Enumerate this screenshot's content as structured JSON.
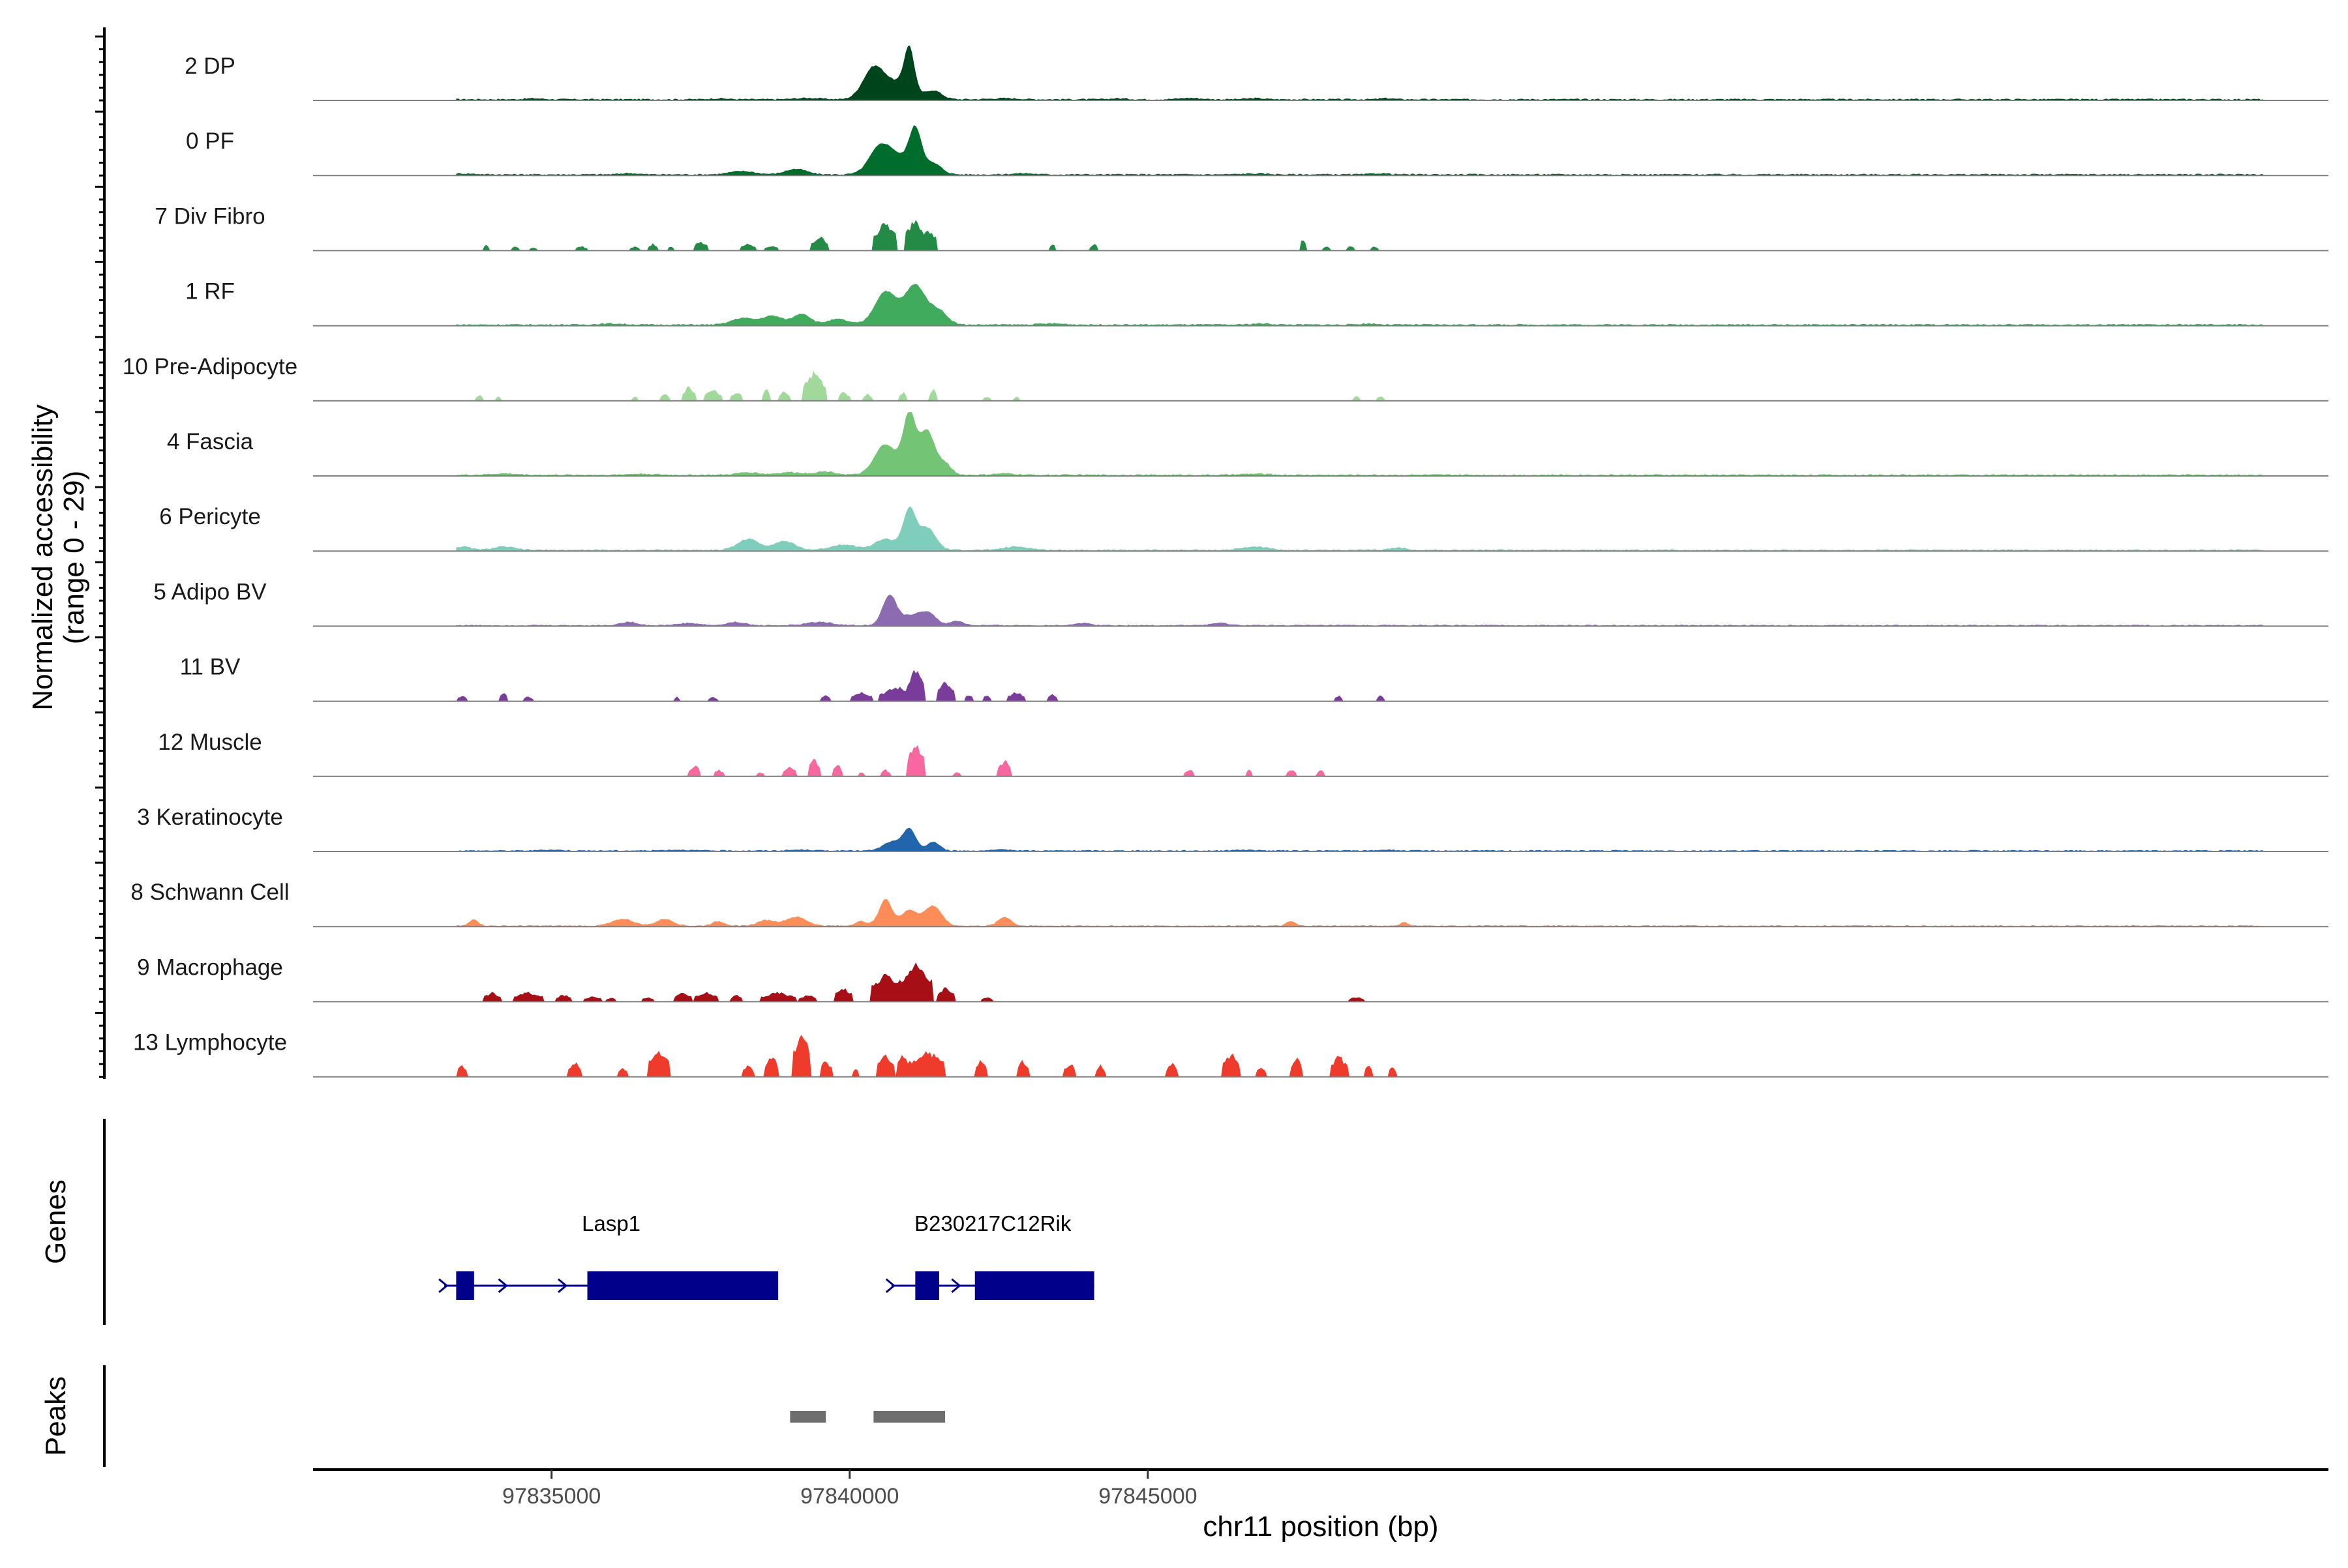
{
  "chart_data": {
    "type": "area",
    "title": "",
    "ylabel": "Normalized accessibility\n(range 0 - 29)",
    "ylabel_lines": [
      "Normalized accessibility",
      "(range 0 - 29)"
    ],
    "ylim": [
      0,
      29
    ],
    "xlabel": "chr11 position (bp)",
    "xlim": [
      97831000,
      97864800
    ],
    "xticks": [
      {
        "value": 97835000,
        "label": "97835000"
      },
      {
        "value": 97840000,
        "label": "97840000"
      },
      {
        "value": 97845000,
        "label": "97845000"
      }
    ],
    "series": [
      {
        "name": "2 DP",
        "color": "#00441b",
        "style": "smooth",
        "base": 0.6,
        "peaks": [
          [
            97833000,
            0.5,
            150
          ],
          [
            97834700,
            0.4,
            200
          ],
          [
            97837800,
            0.4,
            200
          ],
          [
            97839300,
            0.6,
            300
          ],
          [
            97840400,
            14,
            250
          ],
          [
            97840800,
            7,
            300
          ],
          [
            97841000,
            20,
            120
          ],
          [
            97841400,
            4,
            200
          ],
          [
            97842600,
            0.5,
            300
          ],
          [
            97844500,
            0.4,
            200
          ],
          [
            97845700,
            0.6,
            250
          ],
          [
            97846800,
            0.5,
            200
          ],
          [
            97849000,
            0.5,
            150
          ]
        ]
      },
      {
        "name": "0 PF",
        "color": "#006d2c",
        "style": "smooth",
        "base": 0.6,
        "peaks": [
          [
            97833500,
            0.4,
            300
          ],
          [
            97836300,
            0.6,
            200
          ],
          [
            97838200,
            1.5,
            300
          ],
          [
            97839100,
            2.5,
            250
          ],
          [
            97840500,
            12,
            250
          ],
          [
            97840800,
            7,
            250
          ],
          [
            97841100,
            20,
            150
          ],
          [
            97841400,
            5,
            200
          ],
          [
            97842900,
            0.5,
            250
          ],
          [
            97846800,
            0.4,
            300
          ],
          [
            97848900,
            0.5,
            200
          ]
        ]
      },
      {
        "name": "7 Div Fibro",
        "color": "#238b45",
        "style": "blocky",
        "base": 0,
        "peaks": [
          [
            97833900,
            2.5,
            60
          ],
          [
            97834400,
            2,
            70
          ],
          [
            97834700,
            1.5,
            60
          ],
          [
            97835500,
            2,
            90
          ],
          [
            97836400,
            2,
            80
          ],
          [
            97836700,
            3,
            80
          ],
          [
            97837000,
            2,
            60
          ],
          [
            97837500,
            4,
            120
          ],
          [
            97838300,
            3,
            120
          ],
          [
            97838700,
            2,
            120
          ],
          [
            97839500,
            6,
            150
          ],
          [
            97840600,
            12,
            200
          ],
          [
            97841100,
            14,
            170
          ],
          [
            97841300,
            10,
            150
          ],
          [
            97843400,
            3,
            60
          ],
          [
            97844100,
            3,
            70
          ],
          [
            97847600,
            5,
            60
          ],
          [
            97848000,
            2,
            60
          ],
          [
            97848400,
            2,
            70
          ],
          [
            97848800,
            2,
            60
          ]
        ]
      },
      {
        "name": "1 RF",
        "color": "#41ab5d",
        "style": "smooth",
        "base": 0.6,
        "peaks": [
          [
            97836000,
            0.5,
            300
          ],
          [
            97838200,
            3,
            250
          ],
          [
            97838700,
            4,
            250
          ],
          [
            97839200,
            5,
            200
          ],
          [
            97839800,
            2.5,
            250
          ],
          [
            97840600,
            15,
            250
          ],
          [
            97841100,
            18,
            250
          ],
          [
            97841500,
            6,
            200
          ],
          [
            97843400,
            0.5,
            300
          ],
          [
            97846900,
            0.5,
            250
          ],
          [
            97848700,
            0.5,
            200
          ]
        ]
      },
      {
        "name": "10 Pre-Adipocyte",
        "color": "#a1d99b",
        "style": "blocky",
        "base": 0,
        "peaks": [
          [
            97833800,
            2.5,
            70
          ],
          [
            97834100,
            1.8,
            60
          ],
          [
            97836400,
            2,
            60
          ],
          [
            97836900,
            3,
            80
          ],
          [
            97837300,
            6,
            120
          ],
          [
            97837700,
            5,
            150
          ],
          [
            97838100,
            4,
            100
          ],
          [
            97838600,
            5,
            80
          ],
          [
            97838900,
            4,
            100
          ],
          [
            97839400,
            12,
            200
          ],
          [
            97839900,
            4,
            100
          ],
          [
            97840300,
            3,
            80
          ],
          [
            97840900,
            4,
            60
          ],
          [
            97841400,
            5,
            70
          ],
          [
            97842300,
            2,
            60
          ],
          [
            97842800,
            2,
            60
          ],
          [
            97848500,
            2,
            60
          ],
          [
            97848900,
            2,
            80
          ]
        ]
      },
      {
        "name": "4 Fascia",
        "color": "#74c476",
        "style": "smooth",
        "base": 0.6,
        "peaks": [
          [
            97834200,
            0.6,
            300
          ],
          [
            97836500,
            0.5,
            300
          ],
          [
            97838300,
            1.2,
            250
          ],
          [
            97839000,
            1.2,
            300
          ],
          [
            97839600,
            1.5,
            250
          ],
          [
            97840600,
            14,
            250
          ],
          [
            97841000,
            27,
            150
          ],
          [
            97841300,
            20,
            180
          ],
          [
            97841600,
            5,
            150
          ],
          [
            97842600,
            0.6,
            250
          ],
          [
            97846800,
            0.5,
            300
          ]
        ]
      },
      {
        "name": "6 Pericyte",
        "color": "#7fcdbb",
        "style": "smooth",
        "base": 0.6,
        "peaks": [
          [
            97833500,
            1.5,
            200
          ],
          [
            97834200,
            1.5,
            250
          ],
          [
            97838300,
            5,
            250
          ],
          [
            97838900,
            4,
            250
          ],
          [
            97839900,
            2.5,
            300
          ],
          [
            97840600,
            5,
            250
          ],
          [
            97841000,
            18,
            150
          ],
          [
            97841300,
            10,
            200
          ],
          [
            97842800,
            1.5,
            300
          ],
          [
            97846800,
            1.5,
            300
          ],
          [
            97849200,
            1,
            200
          ]
        ]
      },
      {
        "name": "5 Adipo BV",
        "color": "#8c6bb1",
        "style": "smooth",
        "base": 0.5,
        "peaks": [
          [
            97836300,
            1.5,
            200
          ],
          [
            97837300,
            1,
            250
          ],
          [
            97838100,
            1.5,
            200
          ],
          [
            97839500,
            1.5,
            300
          ],
          [
            97840600,
            5,
            150
          ],
          [
            97840700,
            10,
            150
          ],
          [
            97841000,
            4,
            200
          ],
          [
            97841300,
            6,
            200
          ],
          [
            97841800,
            2,
            150
          ],
          [
            97843900,
            1,
            200
          ],
          [
            97846200,
            1,
            200
          ]
        ]
      },
      {
        "name": "11 BV",
        "color": "#7a3c9a",
        "style": "blocky",
        "base": 0,
        "peaks": [
          [
            97833500,
            2.5,
            80
          ],
          [
            97834200,
            4,
            60
          ],
          [
            97834600,
            2,
            80
          ],
          [
            97837100,
            2,
            60
          ],
          [
            97837700,
            2,
            80
          ],
          [
            97839600,
            3,
            80
          ],
          [
            97840200,
            4,
            200
          ],
          [
            97840800,
            6,
            300
          ],
          [
            97841100,
            14,
            150
          ],
          [
            97841600,
            8,
            150
          ],
          [
            97842000,
            3,
            80
          ],
          [
            97842300,
            3,
            60
          ],
          [
            97842800,
            4,
            150
          ],
          [
            97843400,
            3,
            80
          ],
          [
            97848200,
            2.5,
            80
          ],
          [
            97848900,
            2.5,
            80
          ]
        ]
      },
      {
        "name": "12 Muscle",
        "color": "#f768a1",
        "style": "blocky",
        "base": 0,
        "peaks": [
          [
            97837400,
            5,
            100
          ],
          [
            97837800,
            3,
            80
          ],
          [
            97838500,
            2,
            60
          ],
          [
            97839000,
            4,
            120
          ],
          [
            97839400,
            8,
            100
          ],
          [
            97839800,
            5,
            80
          ],
          [
            97840200,
            2,
            60
          ],
          [
            97840600,
            3,
            80
          ],
          [
            97841100,
            14,
            150
          ],
          [
            97841800,
            2,
            60
          ],
          [
            97842600,
            7,
            120
          ],
          [
            97845700,
            3,
            80
          ],
          [
            97846700,
            3,
            60
          ],
          [
            97847400,
            3,
            80
          ],
          [
            97847900,
            3,
            60
          ]
        ]
      },
      {
        "name": "3 Keratinocyte",
        "color": "#2166ac",
        "style": "smooth",
        "base": 0.5,
        "peaks": [
          [
            97835000,
            0.4,
            250
          ],
          [
            97837100,
            0.4,
            300
          ],
          [
            97839200,
            0.4,
            250
          ],
          [
            97840700,
            4,
            200
          ],
          [
            97841000,
            10,
            150
          ],
          [
            97841400,
            4,
            150
          ],
          [
            97842600,
            0.4,
            250
          ],
          [
            97846600,
            0.4,
            250
          ],
          [
            97849000,
            0.4,
            200
          ]
        ]
      },
      {
        "name": "8 Schwann Cell",
        "color": "#fc8d59",
        "style": "smooth",
        "base": 0.5,
        "peaks": [
          [
            97833700,
            3,
            100
          ],
          [
            97836200,
            3,
            250
          ],
          [
            97836900,
            3,
            200
          ],
          [
            97837800,
            2,
            150
          ],
          [
            97838600,
            2.5,
            200
          ],
          [
            97839100,
            4,
            250
          ],
          [
            97840200,
            2,
            150
          ],
          [
            97840600,
            12,
            150
          ],
          [
            97841000,
            7,
            200
          ],
          [
            97841400,
            9,
            200
          ],
          [
            97842600,
            4,
            150
          ],
          [
            97847400,
            2,
            100
          ],
          [
            97849300,
            1.5,
            100
          ]
        ]
      },
      {
        "name": "9 Macrophage",
        "color": "#a50f15",
        "style": "blocky",
        "base": 0,
        "peaks": [
          [
            97834000,
            4,
            150
          ],
          [
            97834600,
            4,
            250
          ],
          [
            97835200,
            3,
            150
          ],
          [
            97835700,
            2.5,
            150
          ],
          [
            97836000,
            2,
            80
          ],
          [
            97836600,
            2,
            100
          ],
          [
            97837200,
            4,
            150
          ],
          [
            97837600,
            4,
            200
          ],
          [
            97838100,
            3,
            100
          ],
          [
            97838800,
            4,
            300
          ],
          [
            97839300,
            3,
            150
          ],
          [
            97839900,
            6,
            150
          ],
          [
            97840600,
            12,
            250
          ],
          [
            97841100,
            16,
            300
          ],
          [
            97841600,
            6,
            150
          ],
          [
            97842300,
            2,
            100
          ],
          [
            97848500,
            2,
            150
          ]
        ]
      },
      {
        "name": "13 Lymphocyte",
        "color": "#ef3b2c",
        "style": "blocky",
        "base": 0,
        "peaks": [
          [
            97833500,
            5,
            100
          ],
          [
            97835400,
            6,
            120
          ],
          [
            97836200,
            4,
            80
          ],
          [
            97836800,
            11,
            200
          ],
          [
            97838300,
            5,
            100
          ],
          [
            97838700,
            9,
            120
          ],
          [
            97839200,
            20,
            150
          ],
          [
            97839600,
            7,
            100
          ],
          [
            97840100,
            4,
            60
          ],
          [
            97840600,
            9,
            150
          ],
          [
            97840900,
            10,
            100
          ],
          [
            97841300,
            11,
            300
          ],
          [
            97842200,
            7,
            100
          ],
          [
            97842900,
            7,
            100
          ],
          [
            97843700,
            6,
            100
          ],
          [
            97844200,
            5,
            80
          ],
          [
            97845400,
            6,
            100
          ],
          [
            97846400,
            10,
            150
          ],
          [
            97846900,
            4,
            100
          ],
          [
            97847500,
            8,
            100
          ],
          [
            97848200,
            9,
            150
          ],
          [
            97848700,
            5,
            80
          ],
          [
            97849100,
            5,
            60
          ]
        ]
      }
    ]
  },
  "genes": {
    "title": "Genes",
    "items": [
      {
        "name": "Lasp1",
        "start": 97833200,
        "end": 97838800,
        "strand": "+",
        "exons": [
          [
            97833400,
            97833700
          ],
          [
            97835600,
            97838800
          ]
        ],
        "arrows": [
          97833200,
          97834200,
          97835200
        ]
      },
      {
        "name": "B230217C12Rik",
        "start": 97840700,
        "end": 97844100,
        "strand": "+",
        "exons": [
          [
            97841100,
            97841500
          ],
          [
            97842100,
            97844100
          ]
        ],
        "arrows": [
          97840700,
          97841800
        ]
      }
    ],
    "color": "#00008b"
  },
  "peaks_track": {
    "title": "Peaks",
    "regions": [
      [
        97839000,
        97839600
      ],
      [
        97840400,
        97841600
      ]
    ],
    "color": "#6e6e6e"
  }
}
